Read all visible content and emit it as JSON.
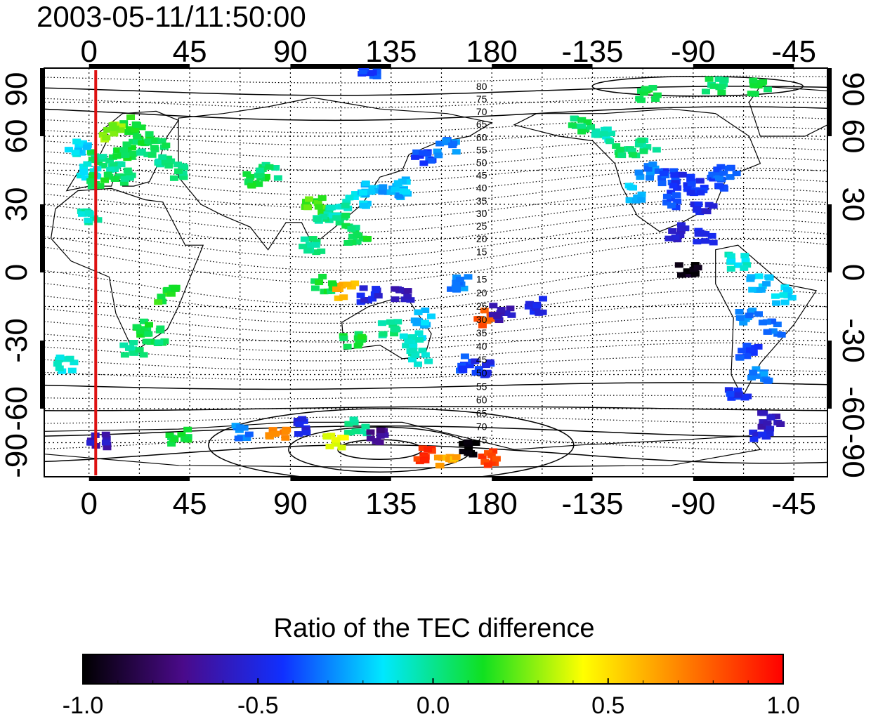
{
  "title": "2003-05-11/11:50:00",
  "map": {
    "x_ticks_top": [
      "0",
      "45",
      "90",
      "135",
      "180",
      "-135",
      "-90",
      "-45"
    ],
    "x_ticks_bottom": [
      "0",
      "45",
      "90",
      "135",
      "180",
      "-135",
      "-90",
      "-45"
    ],
    "y_ticks_left": [
      "90",
      "60",
      "30",
      "0",
      "-30",
      "-60",
      "-90"
    ],
    "y_ticks_right": [
      "90",
      "60",
      "30",
      "0",
      "-30",
      "-60",
      "-90"
    ],
    "longitude_range": [
      -20,
      330
    ],
    "latitude_range": [
      -90,
      90
    ],
    "marker_longitude": 3,
    "marker_color": "#dd1111",
    "contour_labels_north": [
      "80",
      "75",
      "70",
      "65",
      "60",
      "55",
      "50",
      "45",
      "40",
      "35",
      "30",
      "25",
      "20",
      "15"
    ],
    "contour_labels_south": [
      "15",
      "20",
      "25",
      "30",
      "35",
      "40",
      "45",
      "50",
      "55",
      "60",
      "65",
      "70",
      "75"
    ]
  },
  "colorbar": {
    "title": "Ratio of the TEC difference",
    "ticks": [
      "-1.0",
      "-0.5",
      "0.0",
      "0.5",
      "1.0"
    ],
    "range": [
      -1.0,
      1.0
    ],
    "colors": [
      "#000000",
      "#4a0a8a",
      "#1030ff",
      "#00e8ff",
      "#10e020",
      "#ffff00",
      "#ff8000",
      "#ff0000"
    ]
  },
  "patches": [
    {
      "lon": 5,
      "lat": 50,
      "v": 0.05
    },
    {
      "lon": 10,
      "lat": 48,
      "v": 0.0
    },
    {
      "lon": 15,
      "lat": 52,
      "v": 0.1
    },
    {
      "lon": 20,
      "lat": 55,
      "v": 0.05
    },
    {
      "lon": 25,
      "lat": 60,
      "v": 0.1
    },
    {
      "lon": 30,
      "lat": 55,
      "v": 0.05
    },
    {
      "lon": -5,
      "lat": 55,
      "v": -0.15
    },
    {
      "lon": 0,
      "lat": 45,
      "v": -0.1
    },
    {
      "lon": 5,
      "lat": 40,
      "v": 0.1
    },
    {
      "lon": 15,
      "lat": 42,
      "v": 0.05
    },
    {
      "lon": 20,
      "lat": 65,
      "v": 0.15
    },
    {
      "lon": 10,
      "lat": 62,
      "v": 0.3
    },
    {
      "lon": 35,
      "lat": 50,
      "v": 0.0
    },
    {
      "lon": 40,
      "lat": 45,
      "v": 0.05
    },
    {
      "lon": 75,
      "lat": 40,
      "v": 0.1
    },
    {
      "lon": 80,
      "lat": 45,
      "v": 0.05
    },
    {
      "lon": 100,
      "lat": 30,
      "v": 0.2
    },
    {
      "lon": 105,
      "lat": 25,
      "v": 0.0
    },
    {
      "lon": 112,
      "lat": 28,
      "v": -0.05
    },
    {
      "lon": 120,
      "lat": 32,
      "v": -0.15
    },
    {
      "lon": 127,
      "lat": 37,
      "v": -0.2
    },
    {
      "lon": 135,
      "lat": 36,
      "v": -0.25
    },
    {
      "lon": 140,
      "lat": 38,
      "v": -0.2
    },
    {
      "lon": 115,
      "lat": 22,
      "v": 0.05
    },
    {
      "lon": 120,
      "lat": 15,
      "v": 0.1
    },
    {
      "lon": 100,
      "lat": 12,
      "v": 0.0
    },
    {
      "lon": 150,
      "lat": 50,
      "v": -0.4
    },
    {
      "lon": 160,
      "lat": 55,
      "v": -0.3
    },
    {
      "lon": 105,
      "lat": -5,
      "v": 0.1
    },
    {
      "lon": 115,
      "lat": -8,
      "v": 0.6
    },
    {
      "lon": 125,
      "lat": -10,
      "v": -0.5
    },
    {
      "lon": 140,
      "lat": -10,
      "v": -0.6
    },
    {
      "lon": 150,
      "lat": -20,
      "v": -0.2
    },
    {
      "lon": 135,
      "lat": -25,
      "v": 0.0
    },
    {
      "lon": 145,
      "lat": -30,
      "v": -0.1
    },
    {
      "lon": 118,
      "lat": -30,
      "v": 0.1
    },
    {
      "lon": 148,
      "lat": -37,
      "v": -0.05
    },
    {
      "lon": 170,
      "lat": -40,
      "v": -0.4
    },
    {
      "lon": 175,
      "lat": -42,
      "v": -0.45
    },
    {
      "lon": 178,
      "lat": -20,
      "v": 0.8
    },
    {
      "lon": 185,
      "lat": -18,
      "v": -0.6
    },
    {
      "lon": 200,
      "lat": -15,
      "v": -0.5
    },
    {
      "lon": 165,
      "lat": -5,
      "v": -0.3
    },
    {
      "lon": 25,
      "lat": -25,
      "v": 0.1
    },
    {
      "lon": 30,
      "lat": -28,
      "v": 0.05
    },
    {
      "lon": 20,
      "lat": -33,
      "v": 0.0
    },
    {
      "lon": 35,
      "lat": -10,
      "v": 0.15
    },
    {
      "lon": -10,
      "lat": -40,
      "v": -0.1
    },
    {
      "lon": 0,
      "lat": 25,
      "v": -0.05
    },
    {
      "lon": 250,
      "lat": 45,
      "v": -0.3
    },
    {
      "lon": 258,
      "lat": 42,
      "v": -0.4
    },
    {
      "lon": 265,
      "lat": 40,
      "v": -0.45
    },
    {
      "lon": 272,
      "lat": 38,
      "v": -0.45
    },
    {
      "lon": 280,
      "lat": 40,
      "v": -0.4
    },
    {
      "lon": 285,
      "lat": 45,
      "v": -0.35
    },
    {
      "lon": 245,
      "lat": 35,
      "v": -0.2
    },
    {
      "lon": 260,
      "lat": 32,
      "v": -0.4
    },
    {
      "lon": 275,
      "lat": 30,
      "v": -0.5
    },
    {
      "lon": 250,
      "lat": 55,
      "v": 0.0
    },
    {
      "lon": 240,
      "lat": 55,
      "v": 0.05
    },
    {
      "lon": 262,
      "lat": 18,
      "v": -0.55
    },
    {
      "lon": 275,
      "lat": 15,
      "v": -0.5
    },
    {
      "lon": 268,
      "lat": 0,
      "v": -0.95
    },
    {
      "lon": 290,
      "lat": 5,
      "v": -0.1
    },
    {
      "lon": 300,
      "lat": -5,
      "v": -0.2
    },
    {
      "lon": 310,
      "lat": -10,
      "v": -0.15
    },
    {
      "lon": 295,
      "lat": -20,
      "v": -0.3
    },
    {
      "lon": 305,
      "lat": -25,
      "v": -0.35
    },
    {
      "lon": 295,
      "lat": -35,
      "v": -0.4
    },
    {
      "lon": 300,
      "lat": -45,
      "v": -0.3
    },
    {
      "lon": 290,
      "lat": -55,
      "v": -0.45
    },
    {
      "lon": 305,
      "lat": -65,
      "v": -0.6
    },
    {
      "lon": 300,
      "lat": -72,
      "v": -0.5
    },
    {
      "lon": 250,
      "lat": 78,
      "v": 0.1
    },
    {
      "lon": 280,
      "lat": 82,
      "v": 0.05
    },
    {
      "lon": 300,
      "lat": 82,
      "v": 0.1
    },
    {
      "lon": 230,
      "lat": 60,
      "v": -0.05
    },
    {
      "lon": 220,
      "lat": 65,
      "v": 0.05
    },
    {
      "lon": 5,
      "lat": -74,
      "v": -0.6
    },
    {
      "lon": 40,
      "lat": -72,
      "v": 0.1
    },
    {
      "lon": 70,
      "lat": -70,
      "v": -0.3
    },
    {
      "lon": 85,
      "lat": -72,
      "v": 0.7
    },
    {
      "lon": 95,
      "lat": -68,
      "v": -0.5
    },
    {
      "lon": 120,
      "lat": -68,
      "v": 0.0
    },
    {
      "lon": 150,
      "lat": -80,
      "v": 0.9
    },
    {
      "lon": 170,
      "lat": -78,
      "v": -1.0
    },
    {
      "lon": 180,
      "lat": -82,
      "v": 0.85
    },
    {
      "lon": 160,
      "lat": -84,
      "v": 0.6
    },
    {
      "lon": 130,
      "lat": -72,
      "v": -0.7
    },
    {
      "lon": 110,
      "lat": -74,
      "v": 0.4
    },
    {
      "lon": 125,
      "lat": 88,
      "v": -0.4
    }
  ]
}
